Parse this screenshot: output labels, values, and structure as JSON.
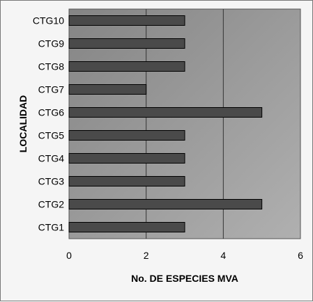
{
  "chart_data": {
    "type": "bar",
    "orientation": "horizontal",
    "categories": [
      "CTG1",
      "CTG2",
      "CTG3",
      "CTG4",
      "CTG5",
      "CTG6",
      "CTG7",
      "CTG8",
      "CTG9",
      "CTG10"
    ],
    "values": [
      3,
      5,
      3,
      3,
      3,
      5,
      2,
      3,
      3,
      3
    ],
    "xlabel": "No. DE ESPECIES MVA",
    "ylabel": "LOCALIDAD",
    "xlim": [
      0,
      6
    ],
    "x_ticks": [
      0,
      2,
      4,
      6
    ],
    "grid": "vertical major gridlines",
    "bar_color": "#4a4a4a",
    "plot_background": "#9a9a9a"
  }
}
